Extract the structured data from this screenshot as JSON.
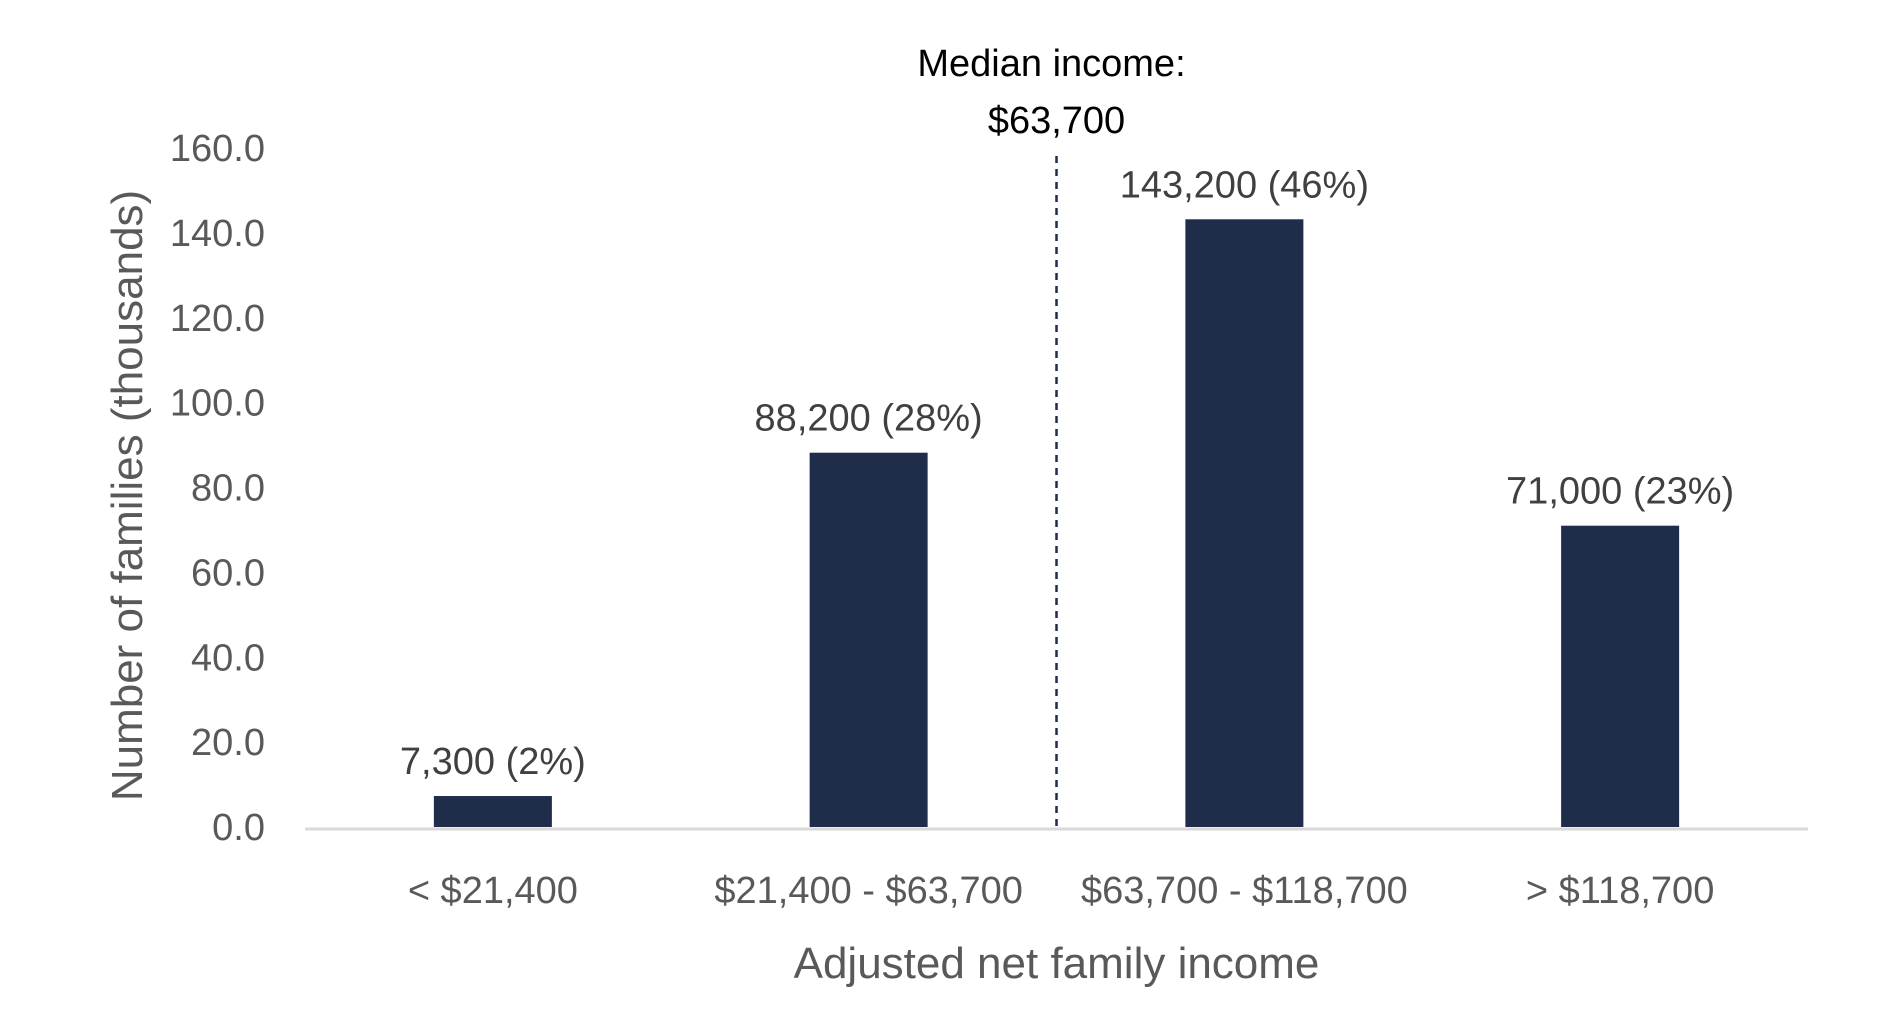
{
  "chart_data": {
    "type": "bar",
    "categories": [
      "< $21,400",
      "$21,400 - $63,700",
      "$63,700 - $118,700",
      "> $118,700"
    ],
    "values": [
      7.3,
      88.2,
      143.2,
      71.0
    ],
    "data_labels": [
      "7,300 (2%)",
      "88,200 (28%)",
      "143,200 (46%)",
      "71,000 (23%)"
    ],
    "title": "",
    "xlabel": "Adjusted net family income",
    "ylabel": "Number of families (thousands)",
    "ylim": [
      0,
      160
    ],
    "yticks": [
      "0.0",
      "20.0",
      "40.0",
      "60.0",
      "80.0",
      "100.0",
      "120.0",
      "140.0",
      "160.0"
    ],
    "grid": false,
    "bar_color": "#1f2d4a",
    "axis_color": "#d9d9d9",
    "annotation": {
      "line1": "Median income:",
      "line2": "$63,700",
      "style": "dashed vertical line between bars 2 and 3"
    }
  }
}
